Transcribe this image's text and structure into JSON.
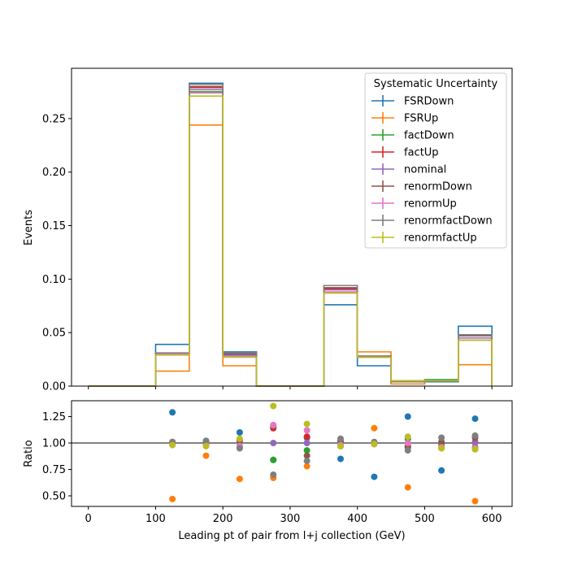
{
  "chart_data": [
    {
      "type": "step-histogram",
      "panel": "main",
      "ylabel": "Events",
      "ylim": [
        0.0,
        0.297
      ],
      "xlim": [
        -25,
        630
      ],
      "bin_edges": [
        0,
        100,
        150,
        200,
        250,
        350,
        400,
        450,
        500,
        550,
        600
      ],
      "yticks": [
        0.0,
        0.05,
        0.1,
        0.15,
        0.2,
        0.25
      ],
      "ytick_labels": [
        "0.00",
        "0.05",
        "0.10",
        "0.15",
        "0.20",
        "0.25"
      ],
      "legend": {
        "title": "Systematic Uncertainty",
        "position": "top-right"
      },
      "series": [
        {
          "name": "FSRDown",
          "color": "#1f77b4",
          "values": [
            0.0,
            0.039,
            0.283,
            0.032,
            0.0,
            0.076,
            0.019,
            0.004,
            0.004,
            0.056
          ]
        },
        {
          "name": "FSRUp",
          "color": "#ff7f0e",
          "values": [
            0.0,
            0.014,
            0.244,
            0.019,
            0.0,
            0.087,
            0.032,
            0.002,
            0.005,
            0.02
          ]
        },
        {
          "name": "factDown",
          "color": "#2ca02c",
          "values": [
            0.0,
            0.03,
            0.275,
            0.028,
            0.0,
            0.088,
            0.027,
            0.005,
            0.006,
            0.043
          ]
        },
        {
          "name": "factUp",
          "color": "#d62728",
          "values": [
            0.0,
            0.03,
            0.279,
            0.03,
            0.0,
            0.091,
            0.028,
            0.004,
            0.005,
            0.045
          ]
        },
        {
          "name": "nominal",
          "color": "#9467bd",
          "values": [
            0.0,
            0.03,
            0.277,
            0.029,
            0.0,
            0.09,
            0.028,
            0.004,
            0.005,
            0.045
          ]
        },
        {
          "name": "renormDown",
          "color": "#8c564b",
          "values": [
            0.0,
            0.03,
            0.28,
            0.03,
            0.0,
            0.092,
            0.028,
            0.004,
            0.005,
            0.047
          ]
        },
        {
          "name": "renormUp",
          "color": "#e377c2",
          "values": [
            0.0,
            0.03,
            0.274,
            0.028,
            0.0,
            0.088,
            0.027,
            0.004,
            0.005,
            0.043
          ]
        },
        {
          "name": "renormfactDown",
          "color": "#7f7f7f",
          "values": [
            0.0,
            0.031,
            0.282,
            0.031,
            0.0,
            0.094,
            0.028,
            0.004,
            0.005,
            0.048
          ]
        },
        {
          "name": "renormfactUp",
          "color": "#bcbd22",
          "values": [
            0.0,
            0.029,
            0.271,
            0.027,
            0.0,
            0.087,
            0.027,
            0.005,
            0.005,
            0.043
          ]
        }
      ]
    },
    {
      "type": "scatter",
      "panel": "ratio",
      "xlabel": "Leading pt of pair from l+j collection (GeV)",
      "ylabel": "Ratio",
      "xlim": [
        -25,
        630
      ],
      "ylim": [
        0.4,
        1.4
      ],
      "xticks": [
        0,
        100,
        200,
        300,
        400,
        500,
        600
      ],
      "xtick_labels": [
        "0",
        "100",
        "200",
        "300",
        "400",
        "500",
        "600"
      ],
      "yticks": [
        0.5,
        0.75,
        1.0,
        1.25
      ],
      "ytick_labels": [
        "0.50",
        "0.75",
        "1.00",
        "1.25"
      ],
      "reference_line": 1.0,
      "x": [
        125,
        175,
        225,
        275,
        325,
        375,
        425,
        475,
        525,
        575
      ],
      "series": [
        {
          "name": "FSRDown",
          "color": "#1f77b4",
          "values": [
            1.29,
            1.02,
            1.1,
            0.84,
            1.05,
            0.85,
            0.68,
            1.25,
            0.74,
            1.23
          ]
        },
        {
          "name": "FSRUp",
          "color": "#ff7f0e",
          "values": [
            0.47,
            0.88,
            0.66,
            0.67,
            0.78,
            0.97,
            1.14,
            0.58,
            0.95,
            0.45
          ]
        },
        {
          "name": "factDown",
          "color": "#2ca02c",
          "values": [
            1.0,
            0.99,
            0.96,
            0.84,
            0.93,
            0.98,
            0.99,
            1.04,
            0.98,
            0.96
          ]
        },
        {
          "name": "factUp",
          "color": "#d62728",
          "values": [
            1.0,
            1.01,
            1.03,
            1.14,
            1.06,
            1.01,
            1.0,
            0.97,
            1.0,
            1.01
          ]
        },
        {
          "name": "nominal",
          "color": "#9467bd",
          "values": [
            1.0,
            1.0,
            1.0,
            1.0,
            1.0,
            1.0,
            1.0,
            1.0,
            1.0,
            1.0
          ]
        },
        {
          "name": "renormDown",
          "color": "#8c564b",
          "values": [
            1.01,
            1.01,
            1.02,
            1.16,
            0.88,
            1.02,
            1.0,
            0.96,
            1.01,
            1.05
          ]
        },
        {
          "name": "renormUp",
          "color": "#e377c2",
          "values": [
            0.99,
            0.98,
            0.97,
            1.17,
            1.12,
            0.98,
            0.99,
            1.0,
            0.96,
            0.95
          ]
        },
        {
          "name": "renormfactDown",
          "color": "#7f7f7f",
          "values": [
            1.01,
            1.02,
            0.95,
            0.7,
            0.83,
            1.04,
            1.01,
            0.93,
            1.05,
            1.07
          ]
        },
        {
          "name": "renormfactUp",
          "color": "#bcbd22",
          "values": [
            0.98,
            0.97,
            1.04,
            1.35,
            1.18,
            0.97,
            0.99,
            1.06,
            0.95,
            0.94
          ]
        }
      ]
    }
  ]
}
